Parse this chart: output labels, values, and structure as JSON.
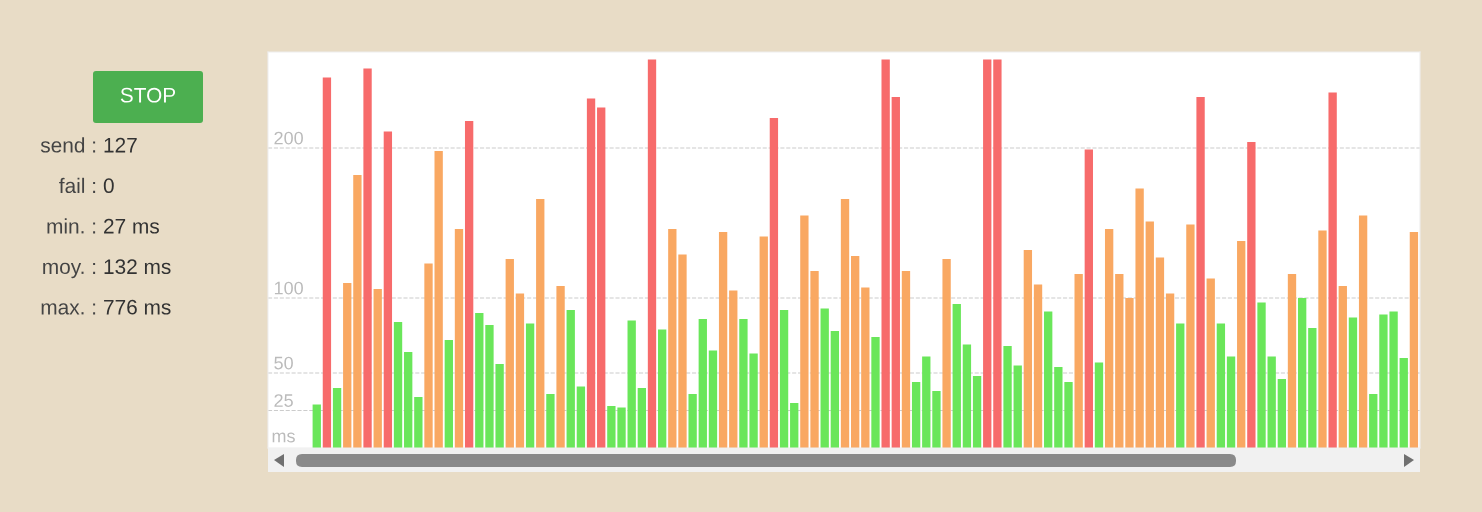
{
  "chart_data": [
    {
      "type": "other",
      "annotations": [
        "STOP",
        "send : 127",
        "fail : 0",
        "min. : 27 ms",
        "moy. : 132 ms",
        "max. : 776 ms"
      ]
    },
    {
      "type": "bar",
      "ylabel": "ms",
      "ylim": [
        0,
        264
      ],
      "yticks": [
        25,
        50,
        100,
        200
      ],
      "grid": "y",
      "categories": [
        null,
        null,
        null,
        null,
        null,
        null,
        null,
        null,
        null,
        null,
        null,
        null,
        null,
        null,
        null,
        null,
        null,
        null,
        null,
        null,
        null,
        null,
        null,
        null,
        null,
        null,
        null,
        null,
        null,
        null,
        null,
        null,
        null,
        null,
        null,
        null,
        null,
        null,
        null,
        null,
        null,
        null,
        null,
        null,
        null,
        null,
        null,
        null,
        null,
        null,
        null,
        null,
        null,
        null,
        null,
        null,
        null,
        null,
        null,
        null,
        null,
        null,
        null,
        null,
        null,
        null,
        null,
        null,
        null,
        null,
        null,
        null,
        null,
        null,
        null,
        null,
        null,
        null,
        null,
        null,
        null,
        null,
        null,
        null,
        null,
        null,
        null,
        null,
        null,
        null,
        null,
        null,
        null,
        null,
        null,
        null,
        null,
        null,
        null,
        null,
        null,
        null,
        null,
        null,
        null,
        null,
        null,
        null,
        null
      ],
      "values": [
        29,
        247,
        40,
        110,
        182,
        253,
        106,
        211,
        84,
        64,
        34,
        123,
        198,
        72,
        146,
        218,
        90,
        82,
        56,
        126,
        103,
        83,
        166,
        36,
        108,
        92,
        41,
        233,
        227,
        28,
        27,
        85,
        40,
        259,
        79,
        146,
        129,
        36,
        86,
        65,
        144,
        105,
        86,
        63,
        141,
        220,
        92,
        30,
        155,
        118,
        93,
        78,
        166,
        128,
        107,
        74,
        259,
        234,
        118,
        44,
        61,
        38,
        126,
        96,
        69,
        48,
        259,
        259,
        68,
        55,
        132,
        109,
        91,
        54,
        44,
        116,
        199,
        57,
        146,
        116,
        100,
        173,
        151,
        127,
        103,
        83,
        149,
        234,
        113,
        83,
        61,
        138,
        204,
        97,
        61,
        46,
        116,
        100,
        80,
        145,
        237,
        108,
        87,
        155,
        36,
        89,
        91,
        60,
        144
      ],
      "colors": [
        "#6ae65a",
        "#f76b6b",
        "#6ae65a",
        "#f9a862",
        "#f9a862",
        "#f76b6b",
        "#f9a862",
        "#f76b6b",
        "#6ae65a",
        "#6ae65a",
        "#6ae65a",
        "#f9a862",
        "#f9a862",
        "#6ae65a",
        "#f9a862",
        "#f76b6b",
        "#6ae65a",
        "#6ae65a",
        "#6ae65a",
        "#f9a862",
        "#f9a862",
        "#6ae65a",
        "#f9a862",
        "#6ae65a",
        "#f9a862",
        "#6ae65a",
        "#6ae65a",
        "#f76b6b",
        "#f76b6b",
        "#6ae65a",
        "#6ae65a",
        "#6ae65a",
        "#6ae65a",
        "#f76b6b",
        "#6ae65a",
        "#f9a862",
        "#f9a862",
        "#6ae65a",
        "#6ae65a",
        "#6ae65a",
        "#f9a862",
        "#f9a862",
        "#6ae65a",
        "#6ae65a",
        "#f9a862",
        "#f76b6b",
        "#6ae65a",
        "#6ae65a",
        "#f9a862",
        "#f9a862",
        "#6ae65a",
        "#6ae65a",
        "#f9a862",
        "#f9a862",
        "#f9a862",
        "#6ae65a",
        "#f76b6b",
        "#f76b6b",
        "#f9a862",
        "#6ae65a",
        "#6ae65a",
        "#6ae65a",
        "#f9a862",
        "#6ae65a",
        "#6ae65a",
        "#6ae65a",
        "#f76b6b",
        "#f76b6b",
        "#6ae65a",
        "#6ae65a",
        "#f9a862",
        "#f9a862",
        "#6ae65a",
        "#6ae65a",
        "#6ae65a",
        "#f9a862",
        "#f76b6b",
        "#6ae65a",
        "#f9a862",
        "#f9a862",
        "#f9a862",
        "#f9a862",
        "#f9a862",
        "#f9a862",
        "#f9a862",
        "#6ae65a",
        "#f9a862",
        "#f76b6b",
        "#f9a862",
        "#6ae65a",
        "#6ae65a",
        "#f9a862",
        "#f76b6b",
        "#6ae65a",
        "#6ae65a",
        "#6ae65a",
        "#f9a862",
        "#6ae65a",
        "#6ae65a",
        "#f9a862",
        "#f76b6b",
        "#f9a862",
        "#6ae65a",
        "#f9a862",
        "#6ae65a",
        "#6ae65a",
        "#6ae65a",
        "#6ae65a",
        "#f9a862"
      ]
    }
  ]
}
